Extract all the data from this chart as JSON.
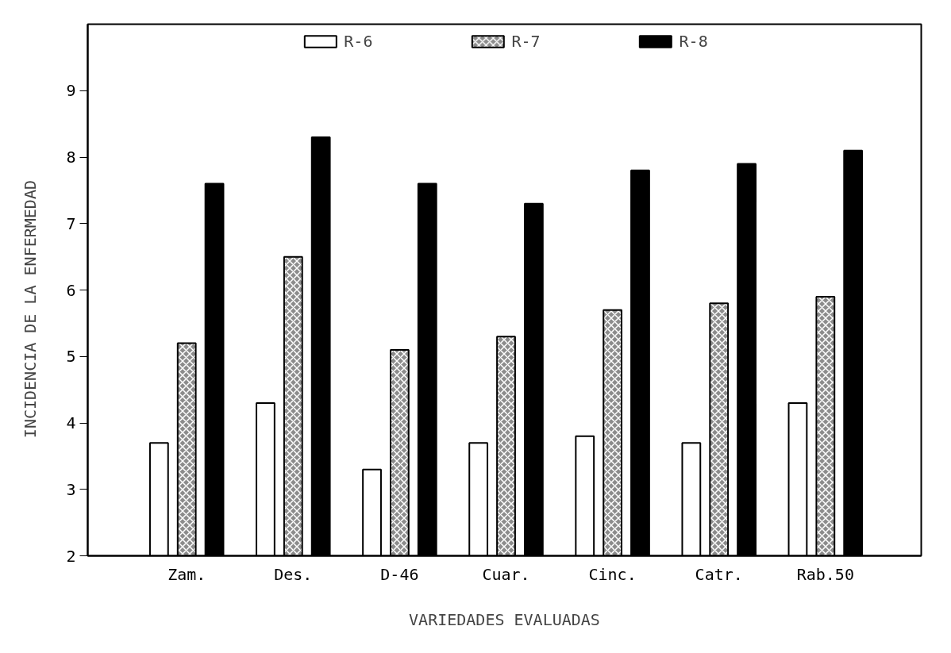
{
  "chart_data": {
    "type": "bar",
    "xlabel": "VARIEDADES EVALUADAS",
    "ylabel": "INCIDENCIA   DE LA   ENFERMEDAD",
    "categories": [
      "Zam.",
      "Des.",
      "D-46",
      "Cuar.",
      "Cinc.",
      "Catr.",
      "Rab.50"
    ],
    "series": [
      {
        "name": "R-6",
        "color": "#ffffff",
        "values": [
          3.7,
          4.3,
          3.3,
          3.7,
          3.8,
          3.7,
          4.3
        ]
      },
      {
        "name": "R-7",
        "color": "#8c8c8c",
        "values": [
          5.2,
          6.5,
          5.1,
          5.3,
          5.7,
          5.8,
          5.9
        ]
      },
      {
        "name": "R-8",
        "color": "#000000",
        "values": [
          7.6,
          8.3,
          7.6,
          7.3,
          7.8,
          7.9,
          8.1
        ]
      }
    ],
    "ylim": [
      2,
      10
    ],
    "yticks": [
      2,
      3,
      4,
      5,
      6,
      7,
      8,
      9
    ],
    "grid": false,
    "legend": "top"
  }
}
